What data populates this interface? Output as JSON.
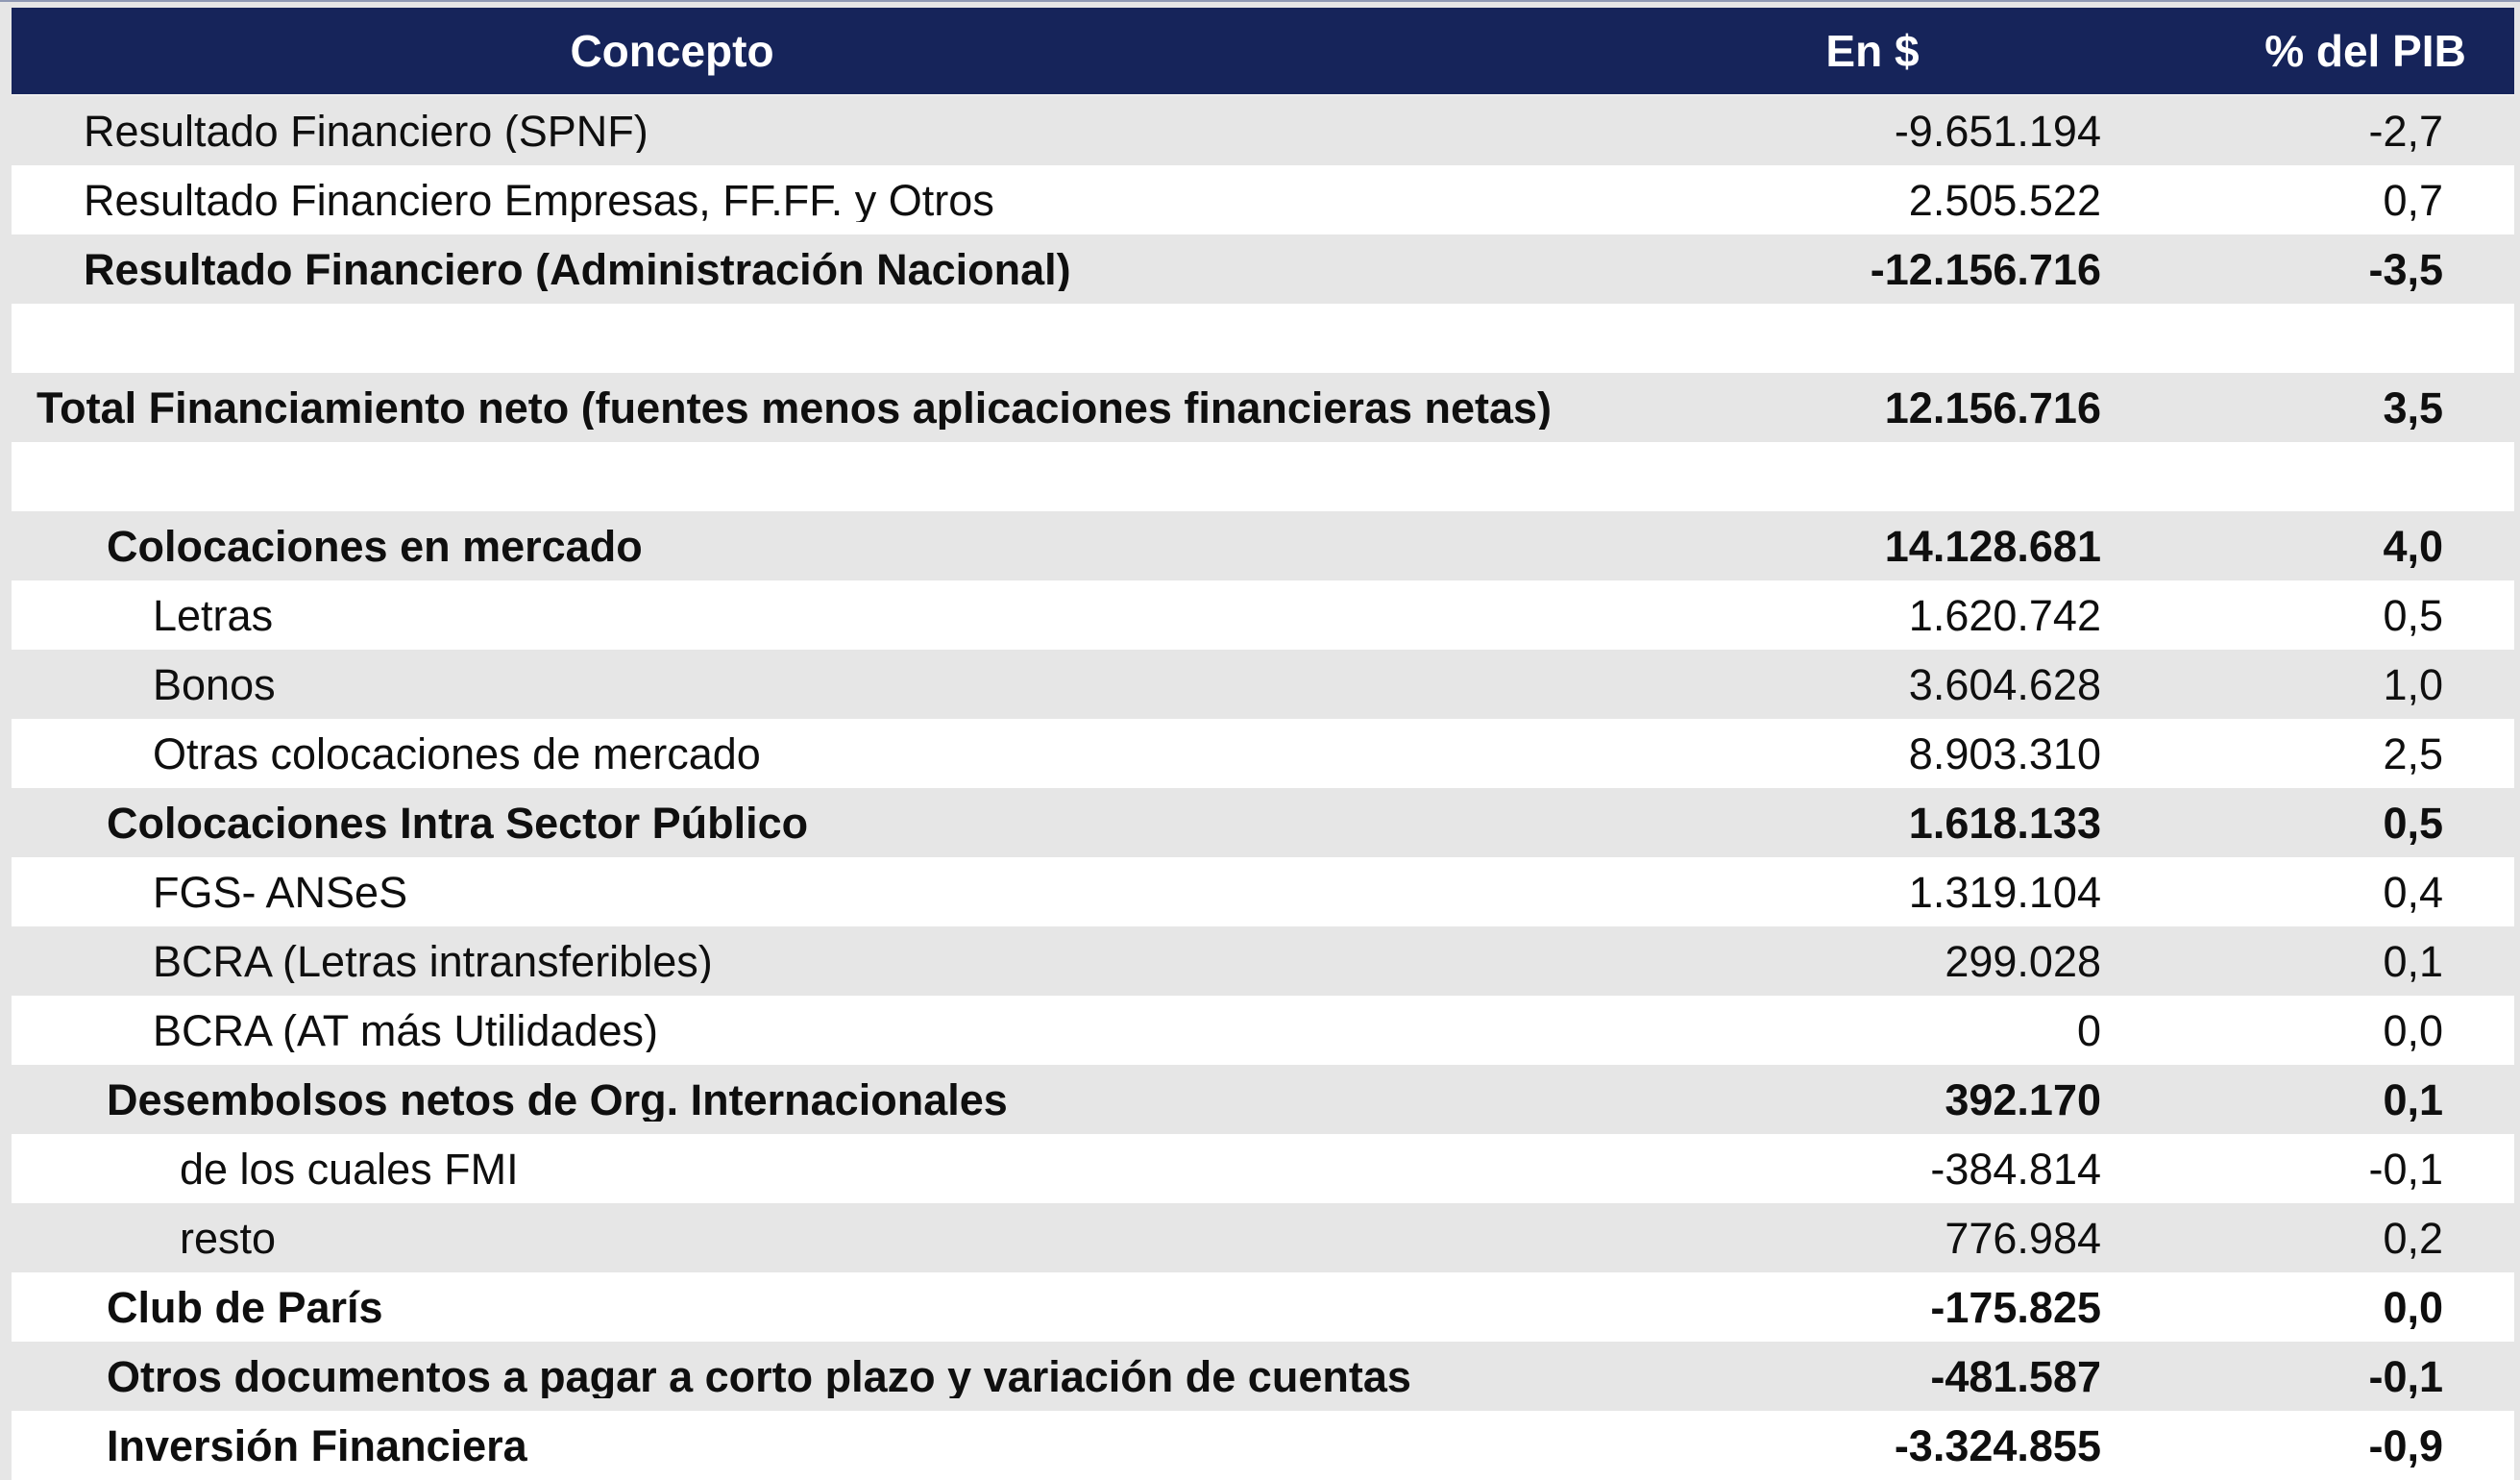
{
  "colors": {
    "header_bg": "#16245a",
    "header_text": "#ffffff",
    "stripe": "#e6e6e6",
    "white": "#ffffff",
    "text": "#0f0f0f"
  },
  "table": {
    "columns": [
      {
        "label": "Concepto"
      },
      {
        "label": "En $"
      },
      {
        "label": "% del PIB"
      }
    ],
    "rows": [
      {
        "concept": "Resultado Financiero (SPNF)",
        "amount": "-9.651.194",
        "pib": "-2,7",
        "bold": false,
        "indent": 1,
        "blank": false
      },
      {
        "concept": "Resultado Financiero Empresas, FF.FF. y Otros",
        "amount": "2.505.522",
        "pib": "0,7",
        "bold": false,
        "indent": 1,
        "blank": false
      },
      {
        "concept": "Resultado Financiero (Administración Nacional)",
        "amount": "-12.156.716",
        "pib": "-3,5",
        "bold": true,
        "indent": 1,
        "blank": false
      },
      {
        "concept": "",
        "amount": "",
        "pib": "",
        "bold": false,
        "indent": 0,
        "blank": true
      },
      {
        "concept": "Total Financiamiento neto (fuentes menos aplicaciones financieras netas)",
        "amount": "12.156.716",
        "pib": "3,5",
        "bold": true,
        "indent": 0,
        "blank": false
      },
      {
        "concept": "",
        "amount": "",
        "pib": "",
        "bold": false,
        "indent": 0,
        "blank": true
      },
      {
        "concept": "Colocaciones en mercado",
        "amount": "14.128.681",
        "pib": "4,0",
        "bold": true,
        "indent": 2,
        "blank": false
      },
      {
        "concept": "Letras",
        "amount": "1.620.742",
        "pib": "0,5",
        "bold": false,
        "indent": 3,
        "blank": false
      },
      {
        "concept": "Bonos",
        "amount": "3.604.628",
        "pib": "1,0",
        "bold": false,
        "indent": 3,
        "blank": false
      },
      {
        "concept": "Otras colocaciones de mercado",
        "amount": "8.903.310",
        "pib": "2,5",
        "bold": false,
        "indent": 3,
        "blank": false
      },
      {
        "concept": "Colocaciones Intra Sector Público",
        "amount": "1.618.133",
        "pib": "0,5",
        "bold": true,
        "indent": 2,
        "blank": false
      },
      {
        "concept": "FGS- ANSeS",
        "amount": "1.319.104",
        "pib": "0,4",
        "bold": false,
        "indent": 3,
        "blank": false
      },
      {
        "concept": "BCRA (Letras intransferibles)",
        "amount": "299.028",
        "pib": "0,1",
        "bold": false,
        "indent": 3,
        "blank": false
      },
      {
        "concept": "BCRA (AT más Utilidades)",
        "amount": "0",
        "pib": "0,0",
        "bold": false,
        "indent": 3,
        "blank": false
      },
      {
        "concept": "Desembolsos netos de Org. Internacionales",
        "amount": "392.170",
        "pib": "0,1",
        "bold": true,
        "indent": 2,
        "blank": false
      },
      {
        "concept": "de los cuales FMI",
        "amount": "-384.814",
        "pib": "-0,1",
        "bold": false,
        "indent": 4,
        "blank": false
      },
      {
        "concept": "resto",
        "amount": "776.984",
        "pib": "0,2",
        "bold": false,
        "indent": 4,
        "blank": false
      },
      {
        "concept": "Club de París",
        "amount": "-175.825",
        "pib": "0,0",
        "bold": true,
        "indent": 2,
        "blank": false
      },
      {
        "concept": "Otros documentos a pagar a corto plazo y variación de cuentas",
        "amount": "-481.587",
        "pib": "-0,1",
        "bold": true,
        "indent": 2,
        "blank": false
      },
      {
        "concept": "Inversión Financiera",
        "amount": "-3.324.855",
        "pib": "-0,9",
        "bold": true,
        "indent": 2,
        "blank": false
      }
    ]
  }
}
